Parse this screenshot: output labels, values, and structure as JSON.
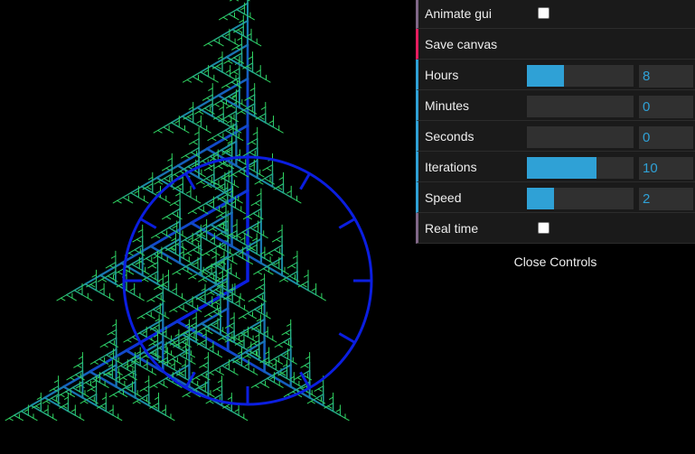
{
  "colors": {
    "clock": "#0b1ee0",
    "tree_tip": "#35e84e",
    "tree_mid": "#1c8aa6",
    "accent": "#2fa1d6"
  },
  "gui": {
    "rows": [
      {
        "label": "Animate gui",
        "type": "boolean",
        "checked": false
      },
      {
        "label": "Save canvas",
        "type": "function"
      },
      {
        "label": "Hours",
        "type": "number",
        "value": "8",
        "fill_fraction": 0.35
      },
      {
        "label": "Minutes",
        "type": "number",
        "value": "0",
        "fill_fraction": 0
      },
      {
        "label": "Seconds",
        "type": "number",
        "value": "0",
        "fill_fraction": 0
      },
      {
        "label": "Iterations",
        "type": "number",
        "value": "10",
        "fill_fraction": 0.65
      },
      {
        "label": "Speed",
        "type": "number",
        "value": "2",
        "fill_fraction": 0.25
      },
      {
        "label": "Real time",
        "type": "boolean",
        "checked": false
      }
    ],
    "close_label": "Close Controls"
  },
  "clock": {
    "hours": 8,
    "minutes": 0,
    "seconds": 0,
    "iterations": 10
  }
}
